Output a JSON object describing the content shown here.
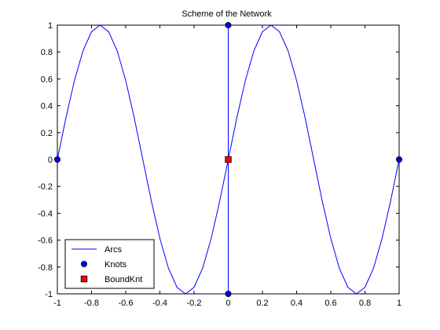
{
  "chart_data": {
    "type": "line",
    "title": "Scheme of the Network",
    "xlabel": "",
    "ylabel": "",
    "xlim": [
      -1,
      1
    ],
    "ylim": [
      -1,
      1
    ],
    "xticks": [
      -1,
      -0.8,
      -0.6,
      -0.4,
      -0.2,
      0,
      0.2,
      0.4,
      0.6,
      0.8,
      1
    ],
    "xtick_labels": [
      "-1",
      "-0.8",
      "-0.6",
      "-0.4",
      "-0.2",
      "0",
      "0.2",
      "0.4",
      "0.6",
      "0.8",
      "1"
    ],
    "yticks": [
      -1,
      -0.8,
      -0.6,
      -0.4,
      -0.2,
      0,
      0.2,
      0.4,
      0.6,
      0.8,
      1
    ],
    "ytick_labels": [
      "-1",
      "-0.8",
      "-0.6",
      "-0.4",
      "-0.2",
      "0",
      "0.2",
      "0.4",
      "0.6",
      "0.8",
      "1"
    ],
    "grid": false,
    "legend_position": "bottom-left",
    "series": [
      {
        "name": "Arcs",
        "kind": "line",
        "color": "#0000ff",
        "curves": [
          {
            "x": [
              -1,
              -0.95,
              -0.9,
              -0.85,
              -0.8,
              -0.75,
              -0.7,
              -0.65,
              -0.6,
              -0.55,
              -0.5,
              -0.45,
              -0.4,
              -0.35,
              -0.3,
              -0.25,
              -0.2,
              -0.15,
              -0.1,
              -0.05,
              0,
              0.05,
              0.1,
              0.15,
              0.2,
              0.25,
              0.3,
              0.35,
              0.4,
              0.45,
              0.5,
              0.55,
              0.6,
              0.65,
              0.7,
              0.75,
              0.8,
              0.85,
              0.9,
              0.95,
              1
            ],
            "y": [
              0,
              0.309,
              0.588,
              0.809,
              0.951,
              1,
              0.951,
              0.809,
              0.588,
              0.309,
              0,
              -0.309,
              -0.588,
              -0.809,
              -0.951,
              -1,
              -0.951,
              -0.809,
              -0.588,
              -0.309,
              0,
              0.309,
              0.588,
              0.809,
              0.951,
              1,
              0.951,
              0.809,
              0.588,
              0.309,
              0,
              -0.309,
              -0.588,
              -0.809,
              -0.951,
              -1,
              -0.951,
              -0.809,
              -0.588,
              -0.309,
              0
            ]
          },
          {
            "x": [
              0,
              0
            ],
            "y": [
              1,
              -1
            ]
          }
        ]
      },
      {
        "name": "Knots",
        "kind": "marker",
        "marker": "circle",
        "color": "#0000ff",
        "points": [
          {
            "x": -1,
            "y": 0
          },
          {
            "x": 0,
            "y": 1
          },
          {
            "x": 0,
            "y": -1
          },
          {
            "x": 1,
            "y": 0
          }
        ]
      },
      {
        "name": "BoundKnt",
        "kind": "marker",
        "marker": "square",
        "color": "#ff0000",
        "points": [
          {
            "x": 0,
            "y": 0
          }
        ]
      }
    ]
  }
}
